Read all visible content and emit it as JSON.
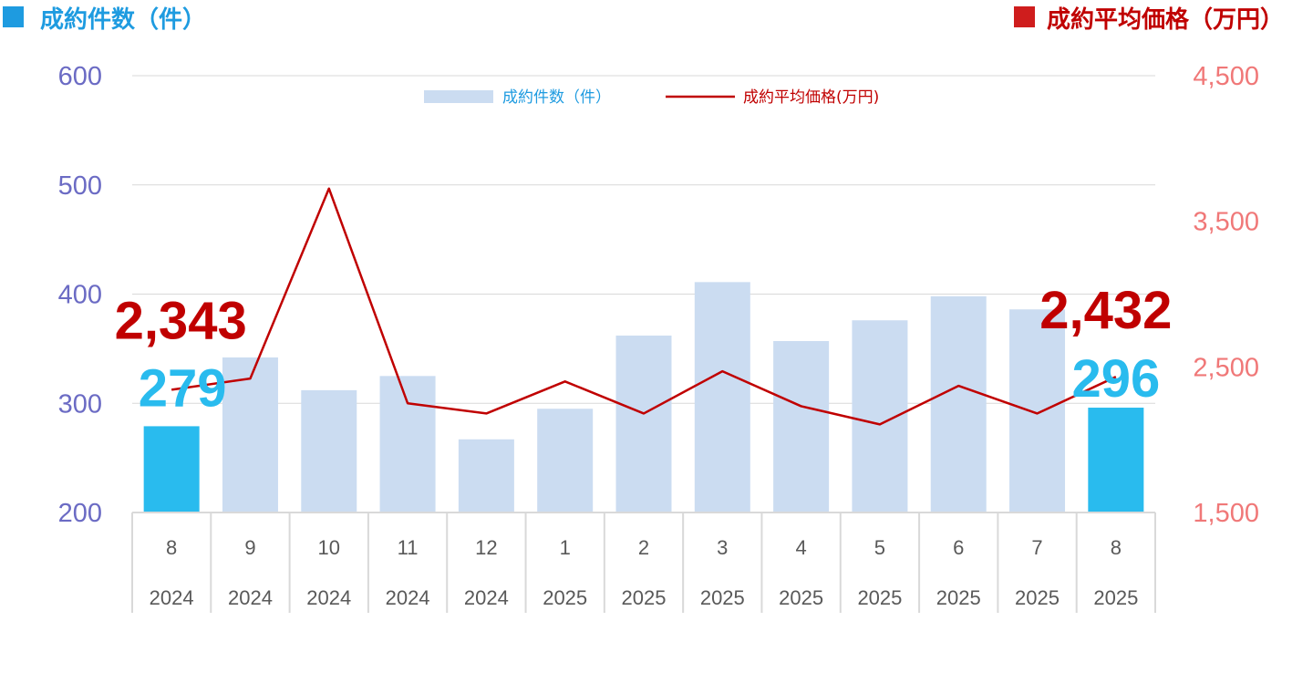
{
  "header": {
    "left_title": "成約件数（件）",
    "right_title": "成約平均価格（万円）",
    "left_color": "#1e9be0",
    "right_color": "#c00000"
  },
  "legend": {
    "bar_label": "成約件数（件）",
    "line_label": "成約平均価格(万円)"
  },
  "chart_data": {
    "type": "bar",
    "categories": [
      "8",
      "9",
      "10",
      "11",
      "12",
      "1",
      "2",
      "3",
      "4",
      "5",
      "6",
      "7",
      "8"
    ],
    "years": [
      "2024",
      "2024",
      "2024",
      "2024",
      "2024",
      "2025",
      "2025",
      "2025",
      "2025",
      "2025",
      "2025",
      "2025",
      "2025"
    ],
    "series": [
      {
        "name": "成約件数（件）",
        "type": "bar",
        "axis": "left",
        "values": [
          279,
          342,
          312,
          325,
          267,
          295,
          362,
          411,
          357,
          376,
          398,
          386,
          296
        ],
        "color": "#cbdcf1",
        "highlight_color": "#29bbee",
        "highlight_indices": [
          0,
          12
        ]
      },
      {
        "name": "成約平均価格(万円)",
        "type": "line",
        "axis": "right",
        "values": [
          2343,
          2420,
          3725,
          2250,
          2180,
          2400,
          2180,
          2470,
          2230,
          2105,
          2370,
          2180,
          2432
        ],
        "color": "#c00000"
      }
    ],
    "y_left": {
      "ylim": [
        200,
        600
      ],
      "ticks": [
        "200",
        "300",
        "400",
        "500",
        "600"
      ]
    },
    "y_right": {
      "ylim": [
        1500,
        4500
      ],
      "ticks": [
        "1,500",
        "2,500",
        "3,500",
        "4,500"
      ]
    },
    "grid": true,
    "legend_position": "top-center",
    "annotations": {
      "first_bar_label": "279",
      "last_bar_label": "296",
      "first_line_label": "2,343",
      "last_line_label": "2,432",
      "bar_label_color": "#29bbee",
      "line_label_color": "#c00000"
    }
  }
}
